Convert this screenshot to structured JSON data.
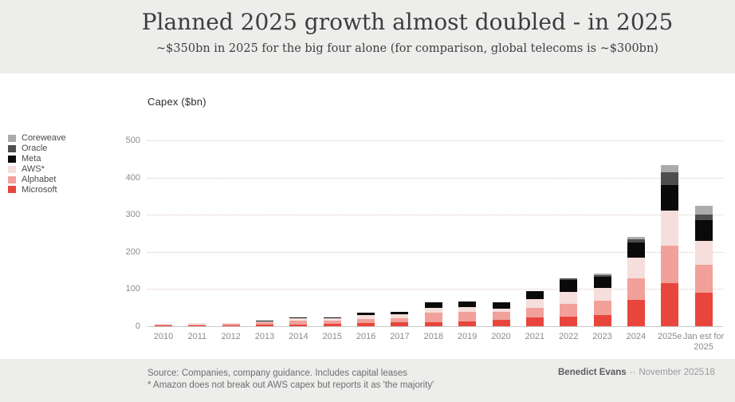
{
  "header": {
    "title": "Planned 2025 growth almost doubled - in 2025",
    "subtitle": "~$350bn in 2025 for the big four alone (for comparison, global telecoms is ~$300bn)"
  },
  "chart_data": {
    "type": "bar",
    "stacked": true,
    "title": "Planned 2025 growth almost doubled - in 2025",
    "ylabel": "Capex ($bn)",
    "xlabel": "",
    "ylim": [
      0,
      500
    ],
    "yticks": [
      0,
      100,
      200,
      300,
      400,
      500
    ],
    "grid": "dotted-horizontal",
    "legend_position": "left",
    "categories": [
      "2010",
      "2011",
      "2012",
      "2013",
      "2014",
      "2015",
      "2016",
      "2017",
      "2018",
      "2019",
      "2020",
      "2021",
      "2022",
      "2023",
      "2024",
      "2025e",
      "Jan est for 2025"
    ],
    "series": [
      {
        "name": "Microsoft",
        "color": "#e8463c",
        "values": [
          2,
          2,
          3,
          4,
          5,
          6,
          9,
          10,
          11,
          13,
          17,
          24,
          26,
          30,
          71,
          116,
          91
        ]
      },
      {
        "name": "Alphabet",
        "color": "#f2a09a",
        "values": [
          3,
          3,
          3,
          7,
          11,
          10,
          10,
          12,
          26,
          25,
          22,
          25,
          34,
          38,
          57,
          100,
          74
        ]
      },
      {
        "name": "AWS*",
        "color": "#f5dedb",
        "values": [
          1,
          3,
          3,
          4,
          5,
          5,
          12,
          10,
          13,
          14,
          9,
          23,
          33,
          35,
          56,
          96,
          64
        ]
      },
      {
        "name": "Meta",
        "color": "#0a0a0a",
        "values": [
          0,
          0,
          0,
          1,
          2,
          3,
          5,
          7,
          14,
          15,
          16,
          22,
          32,
          31,
          41,
          68,
          56
        ]
      },
      {
        "name": "Oracle",
        "color": "#4e4e4e",
        "values": [
          0,
          0,
          0,
          0,
          0,
          0,
          0,
          0,
          0,
          0,
          0,
          0,
          3,
          4,
          8,
          34,
          16
        ]
      },
      {
        "name": "Coreweave",
        "color": "#ababab",
        "values": [
          0,
          0,
          0,
          0,
          0,
          0,
          0,
          0,
          0,
          0,
          0,
          0,
          0,
          3,
          8,
          19,
          22
        ]
      }
    ]
  },
  "footer": {
    "source_line1": "Source: Companies, company guidance. Includes capital leases",
    "source_line2": "* Amazon does not break out AWS capex but reports it as 'the majority'",
    "author": "Benedict Evans",
    "separator": "--",
    "date": "November 2025",
    "page": "18"
  }
}
